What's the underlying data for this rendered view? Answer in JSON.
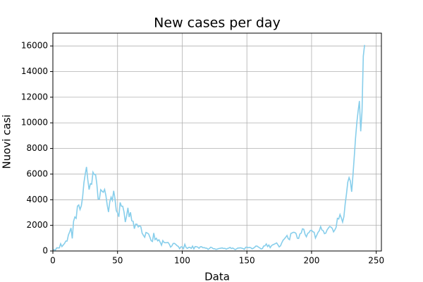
{
  "chart_data": {
    "type": "line",
    "title": "New cases per day",
    "x_label": "Data",
    "y_label": "Nuovi casi",
    "x": [
      0,
      1,
      2,
      3,
      4,
      5,
      6,
      7,
      8,
      9,
      10,
      11,
      12,
      13,
      14,
      15,
      16,
      17,
      18,
      19,
      20,
      21,
      22,
      23,
      24,
      25,
      26,
      27,
      28,
      29,
      30,
      31,
      32,
      33,
      34,
      35,
      36,
      37,
      38,
      39,
      40,
      41,
      42,
      43,
      44,
      45,
      46,
      47,
      48,
      49,
      50,
      51,
      52,
      53,
      54,
      55,
      56,
      57,
      58,
      59,
      60,
      61,
      62,
      63,
      64,
      65,
      66,
      67,
      68,
      69,
      70,
      71,
      72,
      73,
      74,
      75,
      76,
      77,
      78,
      79,
      80,
      81,
      82,
      83,
      84,
      85,
      86,
      87,
      88,
      89,
      90,
      91,
      92,
      93,
      94,
      95,
      96,
      97,
      98,
      99,
      100,
      101,
      102,
      103,
      104,
      105,
      106,
      107,
      108,
      109,
      110,
      111,
      112,
      113,
      114,
      115,
      116,
      117,
      118,
      119,
      120,
      121,
      122,
      123,
      124,
      125,
      126,
      127,
      128,
      129,
      130,
      131,
      132,
      133,
      134,
      135,
      136,
      137,
      138,
      139,
      140,
      141,
      142,
      143,
      144,
      145,
      146,
      147,
      148,
      149,
      150,
      151,
      152,
      153,
      154,
      155,
      156,
      157,
      158,
      159,
      160,
      161,
      162,
      163,
      164,
      165,
      166,
      167,
      168,
      169,
      170,
      171,
      172,
      173,
      174,
      175,
      176,
      177,
      178,
      179,
      180,
      181,
      182,
      183,
      184,
      185,
      186,
      187,
      188,
      189,
      190,
      191,
      192,
      193,
      194,
      195,
      196,
      197,
      198,
      199,
      200,
      201,
      202,
      203,
      204,
      205,
      206,
      207,
      208,
      209,
      210,
      211,
      212,
      213,
      214,
      215,
      216,
      217,
      218,
      219,
      220,
      221,
      222,
      223,
      224,
      225,
      226,
      227,
      228,
      229,
      230,
      231,
      232,
      233,
      234,
      235,
      236,
      237,
      238,
      239,
      240,
      241
    ],
    "series": [
      {
        "color": "#87ceeb",
        "values": [
          93,
          93,
          78,
          250,
          238,
          240,
          566,
          342,
          466,
          587,
          769,
          778,
          1247,
          1492,
          1797,
          977,
          2313,
          2651,
          2547,
          3497,
          3590,
          3233,
          3526,
          4207,
          5322,
          5986,
          6557,
          5560,
          4789,
          5249,
          5210,
          6153,
          5959,
          5974,
          5217,
          4050,
          4053,
          4782,
          4668,
          4585,
          4805,
          4316,
          3599,
          3039,
          3836,
          4204,
          3951,
          4694,
          4092,
          3153,
          2972,
          2667,
          3786,
          3493,
          3491,
          3047,
          2256,
          2729,
          3370,
          2646,
          3021,
          2357,
          2324,
          1739,
          2091,
          2086,
          1872,
          1965,
          1900,
          1389,
          1221,
          1075,
          1444,
          1401,
          1327,
          1083,
          802,
          744,
          1402,
          888,
          992,
          789,
          875,
          675,
          451,
          813,
          665,
          642,
          652,
          669,
          531,
          300,
          397,
          584,
          593,
          516,
          416,
          355,
          178,
          318,
          321,
          177,
          518,
          270,
          197,
          280,
          283,
          202,
          379,
          163,
          346,
          338,
          301,
          210,
          329,
          333,
          251,
          262,
          224,
          218,
          122,
          190,
          296,
          259,
          175,
          174,
          126,
          142,
          187,
          201,
          223,
          235,
          192,
          208,
          138,
          193,
          229,
          276,
          188,
          234,
          169,
          114,
          162,
          230,
          233,
          249,
          219,
          190,
          129,
          282,
          306,
          252,
          275,
          255,
          170,
          212,
          289,
          386,
          379,
          295,
          239,
          159,
          190,
          384,
          402,
          552,
          347,
          463,
          259,
          412,
          481,
          523,
          574,
          629,
          479,
          320,
          403,
          642,
          845,
          947,
          1071,
          1210,
          953,
          878,
          1367,
          1411,
          1462,
          1444,
          1365,
          996,
          978,
          1326,
          1397,
          1733,
          1695,
          1297,
          1108,
          1370,
          1434,
          1597,
          1616,
          1501,
          1458,
          1008,
          1229,
          1452,
          1585,
          1907,
          1638,
          1587,
          1350,
          1392,
          1640,
          1786,
          1912,
          1869,
          1766,
          1494,
          1648,
          1851,
          2548,
          2499,
          2844,
          2578,
          2257,
          2677,
          3678,
          4458,
          5372,
          5724,
          5456,
          4619,
          5901,
          7332,
          8804,
          10010,
          10925,
          11705,
          9338,
          10874,
          15199,
          16079
        ]
      }
    ],
    "xlim": [
      0,
      254
    ],
    "xticks": [
      0,
      50,
      100,
      150,
      200,
      250
    ],
    "ylim": [
      0,
      17000
    ],
    "yticks": [
      0,
      2000,
      4000,
      6000,
      8000,
      10000,
      12000,
      14000,
      16000
    ],
    "grid": true
  }
}
